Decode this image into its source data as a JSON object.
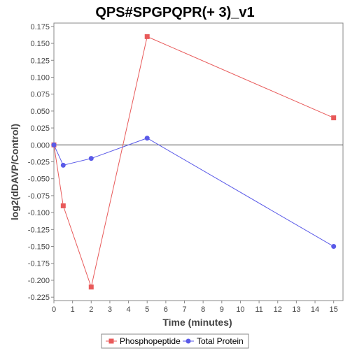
{
  "chart_data": {
    "type": "line",
    "title": "QPS#SPGPQPR(+ 3)_v1",
    "xlabel": "Time (minutes)",
    "ylabel": "log2(dDAVP/Control)",
    "xlim": [
      0,
      15.5
    ],
    "ylim": [
      -0.23,
      0.18
    ],
    "x_ticks": [
      0,
      1,
      2,
      3,
      4,
      5,
      6,
      7,
      8,
      9,
      10,
      11,
      12,
      13,
      14,
      15
    ],
    "y_ticks": [
      0.175,
      0.15,
      0.125,
      0.1,
      0.075,
      0.05,
      0.025,
      0.0,
      -0.025,
      -0.05,
      -0.075,
      -0.1,
      -0.125,
      -0.15,
      -0.175,
      -0.2,
      -0.225
    ],
    "y_tick_labels": [
      "0.175",
      "0.150",
      "0.125",
      "0.100",
      "0.075",
      "0.050",
      "0.025",
      "0.000",
      "-0.025",
      "-0.050",
      "-0.075",
      "-0.100",
      "-0.125",
      "-0.150",
      "-0.175",
      "-0.200",
      "-0.225"
    ],
    "zero_line": true,
    "grid": false,
    "legend_position": "bottom",
    "series": [
      {
        "name": "Phosphopeptide",
        "color": "#e85a5a",
        "marker": "square",
        "x": [
          0,
          0.5,
          2,
          5,
          15
        ],
        "y": [
          0.0,
          -0.09,
          -0.21,
          0.16,
          0.04
        ]
      },
      {
        "name": "Total Protein",
        "color": "#5a5ae8",
        "marker": "circle",
        "x": [
          0,
          0.5,
          2,
          5,
          15
        ],
        "y": [
          0.0,
          -0.03,
          -0.02,
          0.01,
          -0.15
        ]
      }
    ]
  }
}
